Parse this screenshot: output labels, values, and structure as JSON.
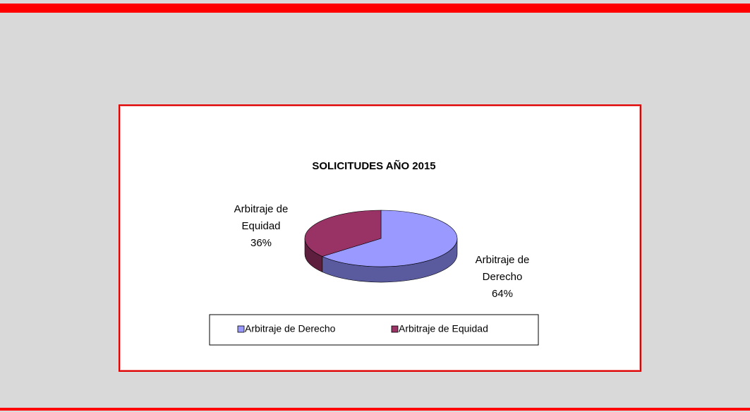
{
  "chart_data": {
    "type": "pie",
    "title": "SOLICITUDES AÑO 2015",
    "categories": [
      "Arbitraje de Derecho",
      "Arbitraje de Equidad"
    ],
    "values": [
      64,
      36
    ],
    "value_labels": [
      "64%",
      "36%"
    ],
    "colors": [
      "#9999ff",
      "#993366"
    ],
    "side_colors": [
      "#5a5a9e",
      "#5e1f3f"
    ],
    "legend": "bottom"
  }
}
